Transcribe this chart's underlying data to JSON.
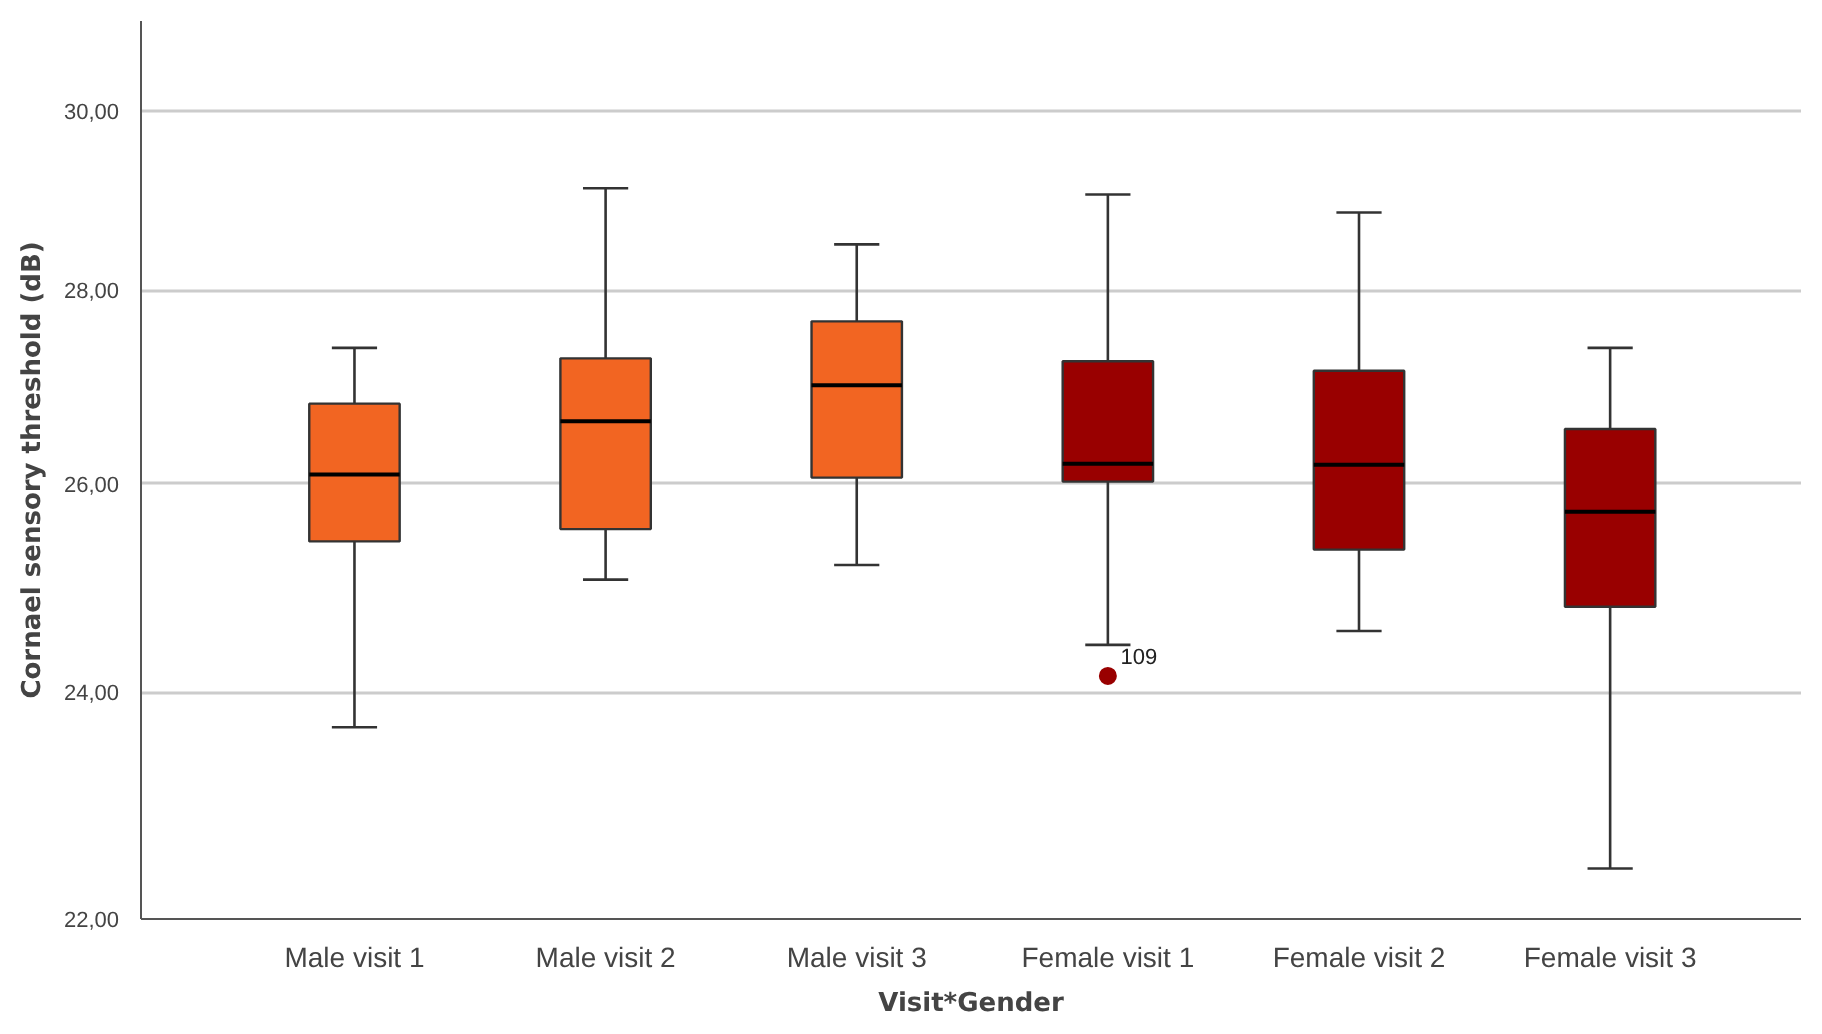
{
  "chart_data": {
    "type": "box",
    "xlabel": "Visit*Gender",
    "ylabel": "Cornael sensory threshold (dB)",
    "categories": [
      "Male visit 1",
      "Male visit 2",
      "Male visit 3",
      "Female visit 1",
      "Female visit 2",
      "Female visit 3"
    ],
    "boxes": [
      {
        "low": 23.68,
        "q1": 25.43,
        "median": 26.09,
        "q3": 26.81,
        "high": 27.39
      },
      {
        "low": 25.06,
        "q1": 25.55,
        "median": 26.63,
        "q3": 27.28,
        "high": 29.12
      },
      {
        "low": 25.2,
        "q1": 26.06,
        "median": 27.0,
        "q3": 27.67,
        "high": 28.5
      },
      {
        "low": 24.44,
        "q1": 26.02,
        "median": 26.2,
        "q3": 27.25,
        "high": 29.05,
        "outliers": [
          24.15
        ]
      },
      {
        "low": 24.57,
        "q1": 25.35,
        "median": 26.19,
        "q3": 27.15,
        "high": 28.85
      },
      {
        "low": 22.43,
        "q1": 24.8,
        "median": 25.72,
        "q3": 26.55,
        "high": 27.39
      }
    ],
    "colors": [
      "#f26522",
      "#f26522",
      "#f26522",
      "#990000",
      "#990000",
      "#990000"
    ],
    "ylim": [
      22,
      31.05
    ],
    "yticks": [
      {
        "value": 22,
        "label": "22,00"
      },
      {
        "value": 24,
        "label": "24,00"
      },
      {
        "value": 26,
        "label": "26,00"
      },
      {
        "value": 28,
        "label": "28,00"
      },
      {
        "value": 30,
        "label": "30,00"
      }
    ],
    "log": "y",
    "grid": "y",
    "annotations": [
      "109"
    ]
  }
}
